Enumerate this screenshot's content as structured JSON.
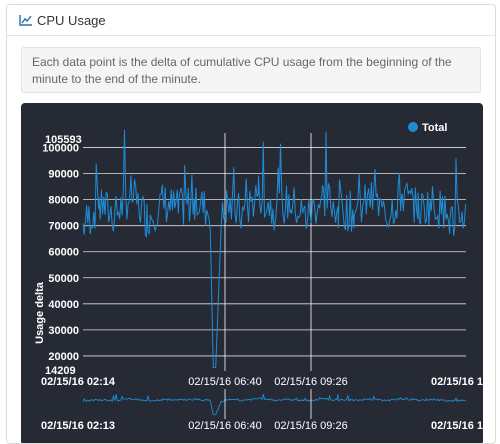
{
  "panel": {
    "title": "CPU Usage",
    "icon": "line-chart-icon",
    "description": "Each data point is the delta of cumulative CPU usage from the beginning of the minute to the end of the minute."
  },
  "colors": {
    "background": "#262a35",
    "series": "#1f8dd6",
    "text": "#ffffff",
    "grid": "#ffffff"
  },
  "chart_data": {
    "type": "line",
    "ylabel": "Usage delta",
    "ylim": [
      14209,
      105593
    ],
    "y_min_label": "14209",
    "y_max_label": "105593",
    "yticks": [
      20000,
      30000,
      40000,
      50000,
      60000,
      70000,
      80000,
      90000,
      100000
    ],
    "legend": {
      "placement": "top-right",
      "entries": [
        "Total"
      ]
    },
    "x_tick_labels": [
      "02/15/16 06:40",
      "02/15/16 09:26"
    ],
    "x_start_label": "02/15/16 02:14",
    "x_end_label": "02/15/16 1",
    "navigator": {
      "start_label": "02/15/16 02:13",
      "tick_labels": [
        "02/15/16 06:40",
        "02/15/16 09:26"
      ],
      "end_label": "02/15/16 1"
    },
    "series": [
      {
        "name": "Total",
        "x": [
          0,
          30,
          60,
          90,
          120,
          150,
          180,
          210,
          240,
          245,
          250,
          260,
          270,
          300,
          330,
          360,
          390,
          420,
          450,
          480,
          510,
          540,
          570,
          600,
          630,
          660,
          690,
          720
        ],
        "values": [
          70000,
          78000,
          74000,
          82000,
          73000,
          79000,
          76000,
          80000,
          75000,
          15500,
          15500,
          71000,
          78000,
          74000,
          83000,
          76000,
          79000,
          73000,
          81000,
          77000,
          75000,
          80000,
          74000,
          82000,
          76000,
          79000,
          72000,
          75000
        ]
      }
    ]
  }
}
